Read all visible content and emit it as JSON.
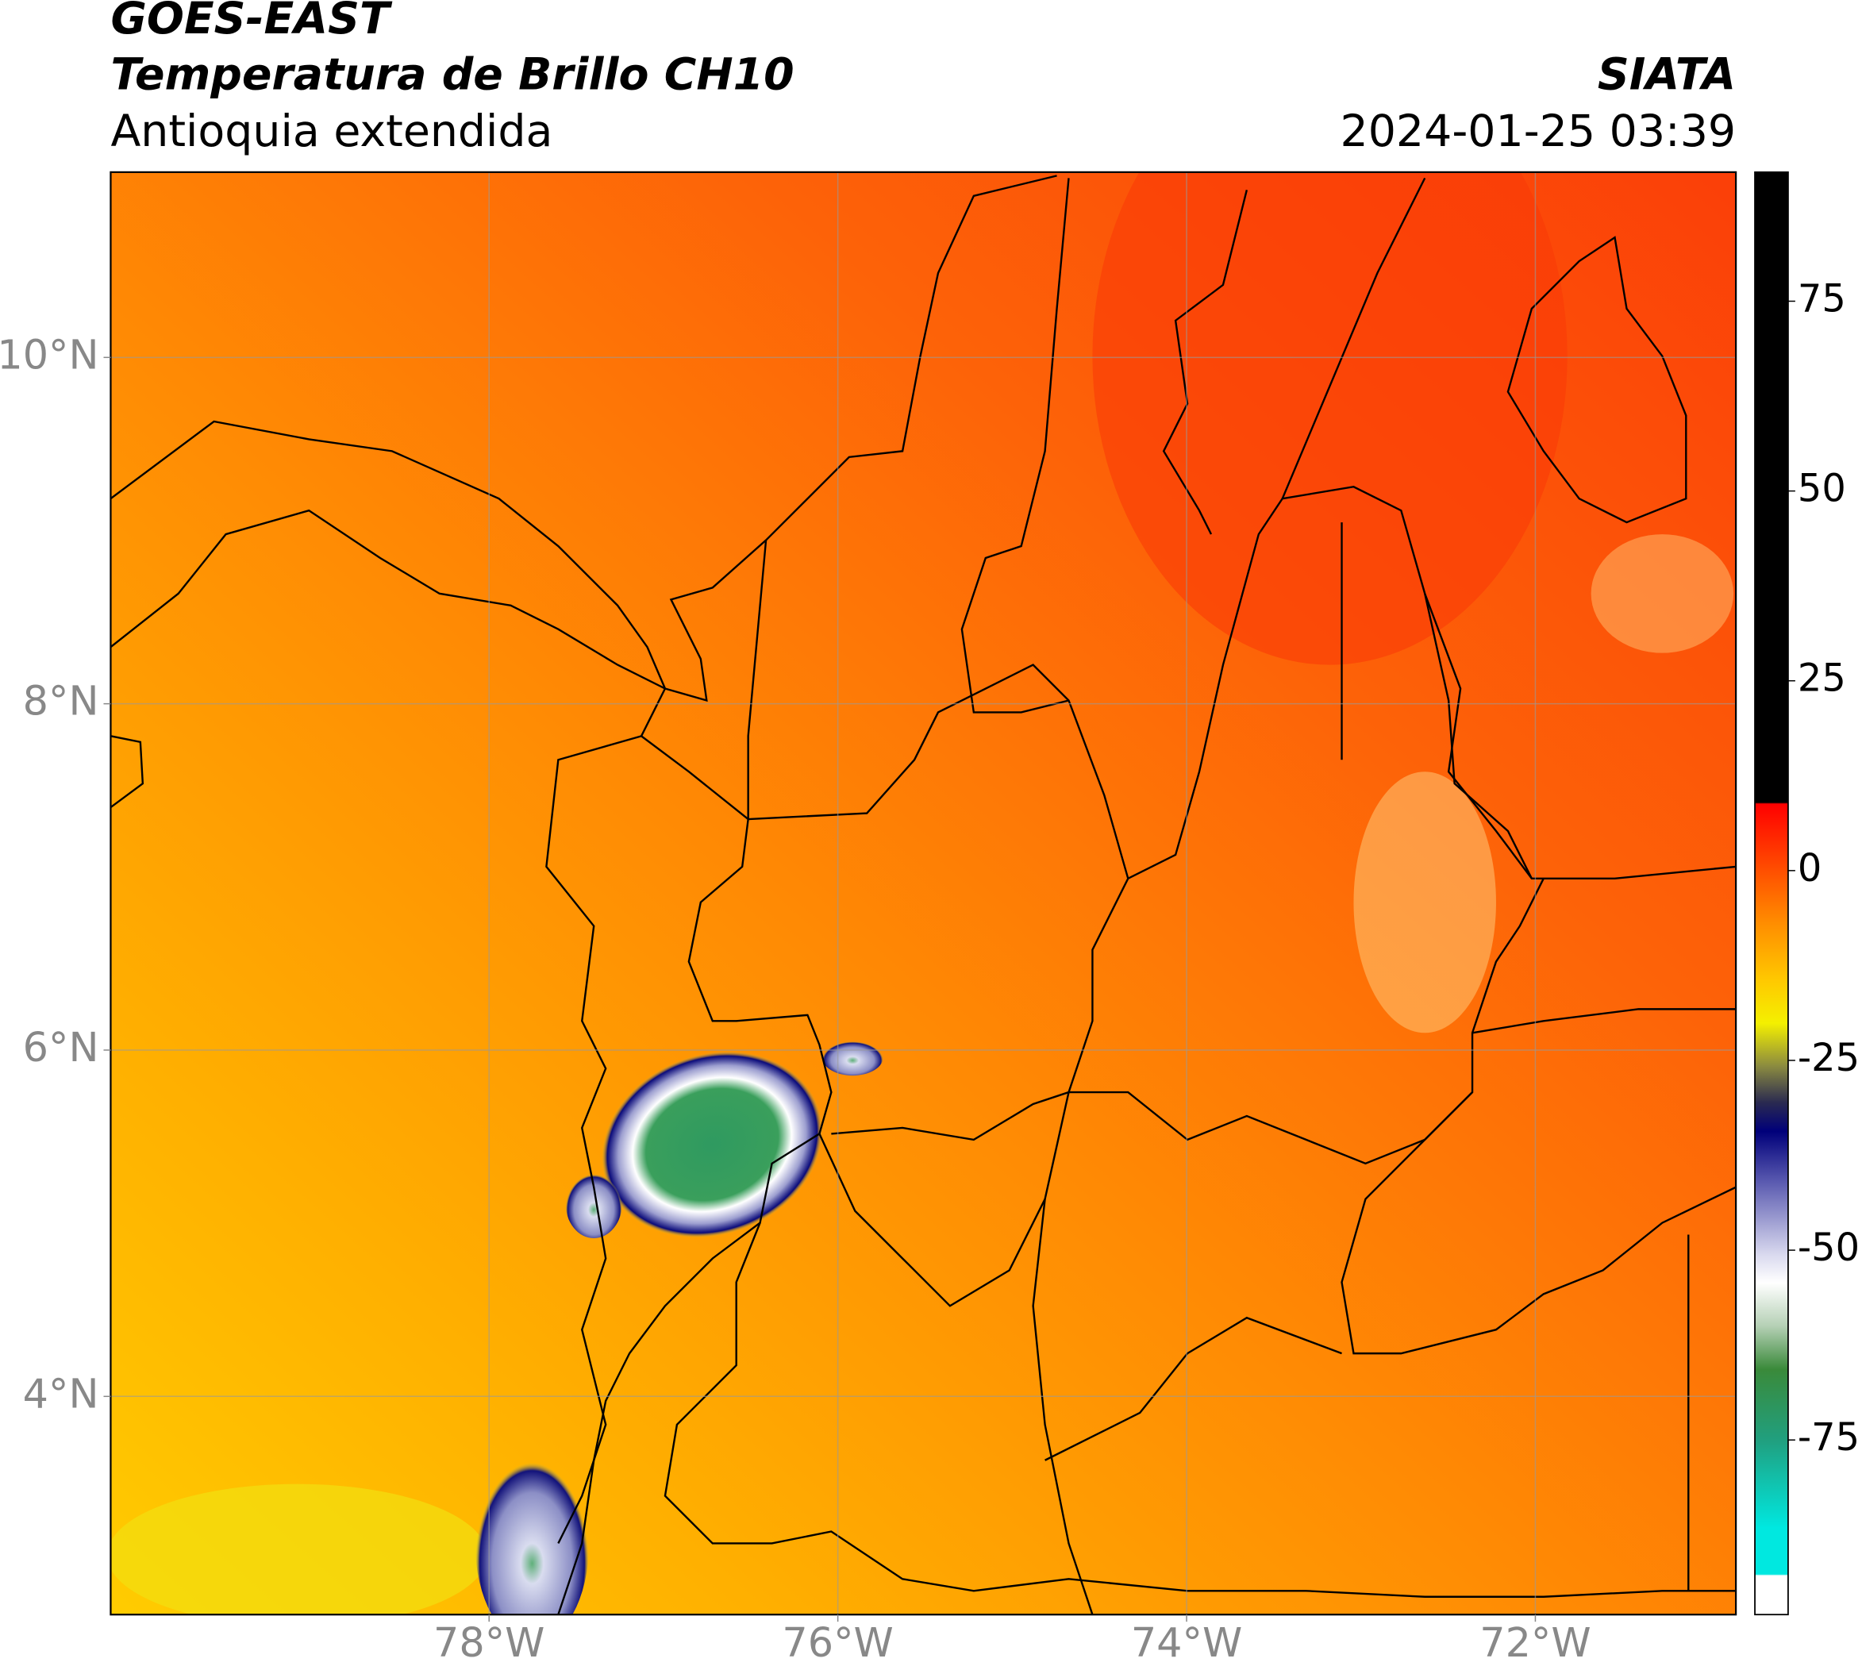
{
  "header": {
    "title": "GOES-EAST",
    "subtitle": "Temperatura de Brillo CH10",
    "region": "Antioquia extendida",
    "source": "SIATA",
    "timestamp": "2024-01-25 03:39"
  },
  "map": {
    "lon_range": [
      -80.17,
      -70.85
    ],
    "lat_range": [
      2.74,
      11.07
    ],
    "lon_ticks": [
      {
        "value": -78,
        "label": "78°W"
      },
      {
        "value": -76,
        "label": "76°W"
      },
      {
        "value": -74,
        "label": "74°W"
      },
      {
        "value": -72,
        "label": "72°W"
      }
    ],
    "lat_ticks": [
      {
        "value": 10,
        "label": "10°N"
      },
      {
        "value": 8,
        "label": "8°N"
      },
      {
        "value": 6,
        "label": "6°N"
      },
      {
        "value": 4,
        "label": "4°N"
      }
    ],
    "grid": true
  },
  "colorbar": {
    "range": [
      -98,
      92
    ],
    "ticks": [
      75,
      50,
      25,
      0,
      -25,
      -50,
      -75
    ]
  }
}
